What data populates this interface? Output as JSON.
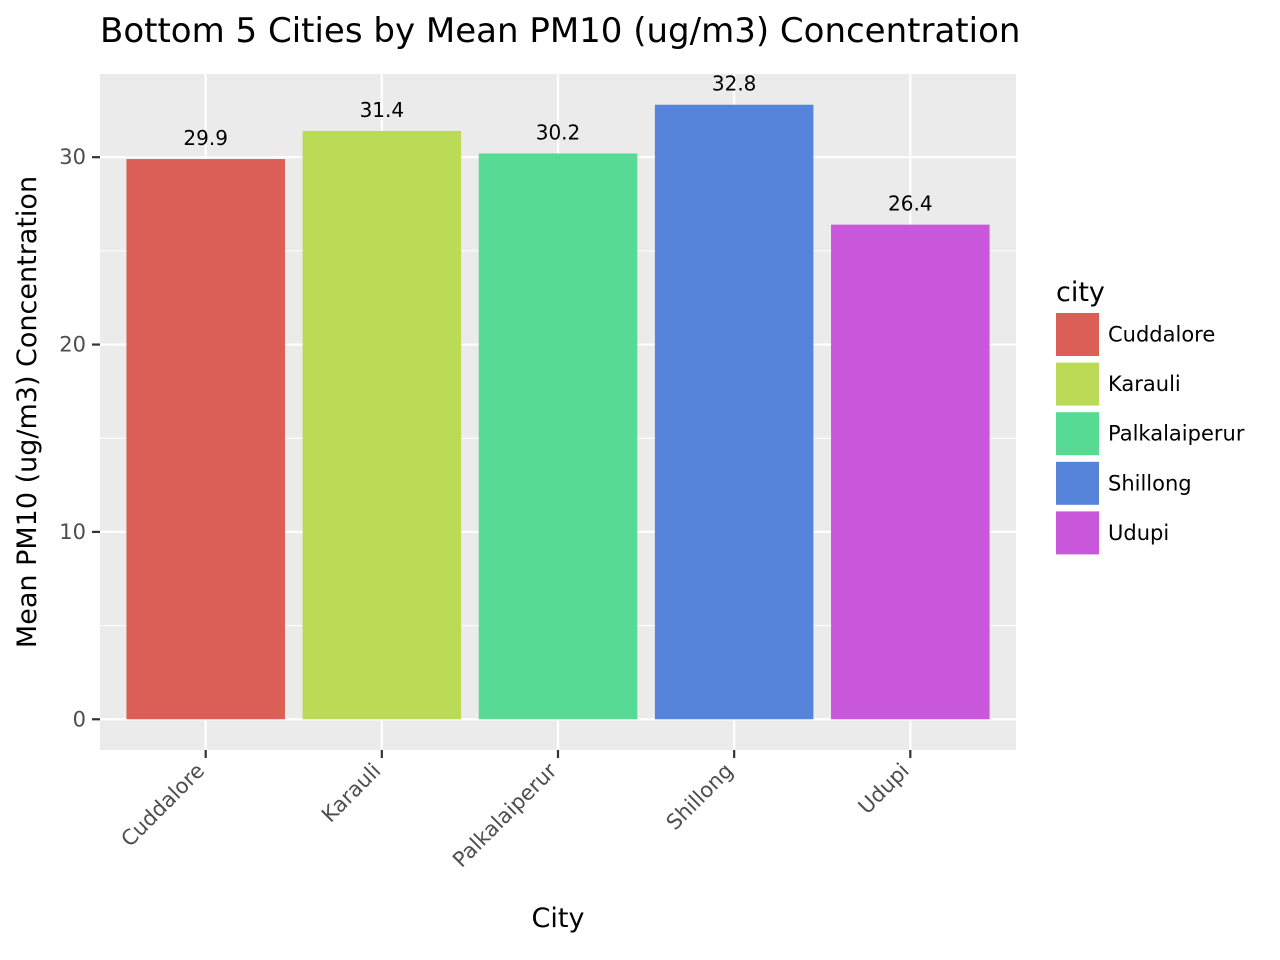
{
  "chart_data": {
    "type": "bar",
    "title": "Bottom 5 Cities by Mean PM10 (ug/m3) Concentration",
    "xlabel": "City",
    "ylabel": "Mean PM10 (ug/m3) Concentration",
    "categories": [
      "Cuddalore",
      "Karauli",
      "Palkalaiperur",
      "Shillong",
      "Udupi"
    ],
    "values": [
      29.9,
      31.4,
      30.2,
      32.8,
      26.4
    ],
    "data_labels": [
      "29.9",
      "31.4",
      "30.2",
      "32.8",
      "26.4"
    ],
    "colors": [
      "#DB5F57",
      "#BBDB57",
      "#57DB94",
      "#5784DB",
      "#C957DB"
    ],
    "ylim": [
      -1.64,
      34.44
    ],
    "yticks": [
      0,
      10,
      20,
      30
    ],
    "ytick_labels": [
      "0",
      "10",
      "20",
      "30"
    ],
    "grid": true,
    "panel_background": "#EBEBEB",
    "legend": {
      "title": "city",
      "position": "right",
      "entries": [
        "Cuddalore",
        "Karauli",
        "Palkalaiperur",
        "Shillong",
        "Udupi"
      ]
    }
  }
}
